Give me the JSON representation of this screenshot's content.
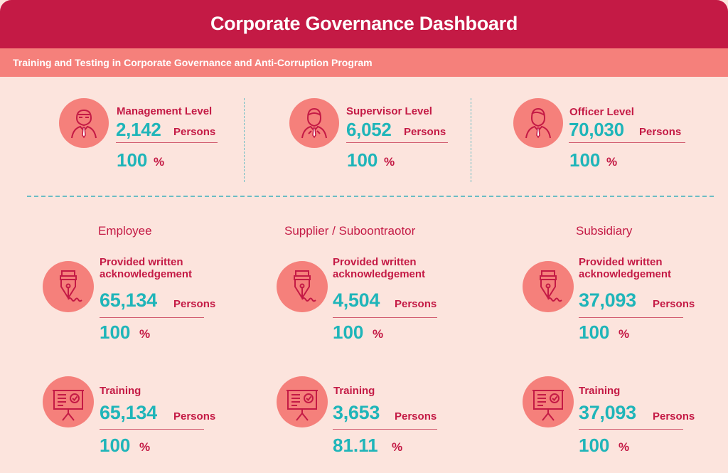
{
  "header": {
    "title": "Corporate Governance Dashboard"
  },
  "subheader": {
    "text": "Training and Testing in Corporate Governance and Anti-Corruption Program"
  },
  "levels": [
    {
      "label": "Management Level",
      "value": "2,142",
      "unit": "Persons",
      "percent": "100",
      "pct_sign": "%",
      "icon": "manager-icon"
    },
    {
      "label": "Supervisor Level",
      "value": "6,052",
      "unit": "Persons",
      "percent": "100",
      "pct_sign": "%",
      "icon": "supervisor-icon"
    },
    {
      "label": "Officer Level",
      "value": "70,030",
      "unit": "Persons",
      "percent": "100",
      "pct_sign": "%",
      "icon": "officer-icon"
    }
  ],
  "groups": [
    {
      "title": "Employee",
      "ack": {
        "label_line1": "Provided written",
        "label_line2": "acknowledgement",
        "value": "65,134",
        "unit": "Persons",
        "percent": "100",
        "pct_sign": "%",
        "icon": "fountain-pen-icon"
      },
      "training": {
        "label": "Training",
        "value": "65,134",
        "unit": "Persons",
        "percent": "100",
        "pct_sign": "%",
        "icon": "presentation-board-icon"
      }
    },
    {
      "title": "Supplier / Suboontraotor",
      "ack": {
        "label_line1": "Provided written",
        "label_line2": "acknowledgement",
        "value": "4,504",
        "unit": "Persons",
        "percent": "100",
        "pct_sign": "%",
        "icon": "fountain-pen-icon"
      },
      "training": {
        "label": "Training",
        "value": "3,653",
        "unit": "Persons",
        "percent": "81.11",
        "pct_sign": "%",
        "icon": "presentation-board-icon"
      }
    },
    {
      "title": "Subsidiary",
      "ack": {
        "label_line1": "Provided written",
        "label_line2": "acknowledgement",
        "value": "37,093",
        "unit": "Persons",
        "percent": "100",
        "pct_sign": "%",
        "icon": "fountain-pen-icon"
      },
      "training": {
        "label": "Training",
        "value": "37,093",
        "unit": "Persons",
        "percent": "100",
        "pct_sign": "%",
        "icon": "presentation-board-icon"
      }
    }
  ],
  "colors": {
    "primary": "#c41a45",
    "accent": "#1fb5b9",
    "circle": "#f5807b",
    "background": "#fce4dd"
  }
}
